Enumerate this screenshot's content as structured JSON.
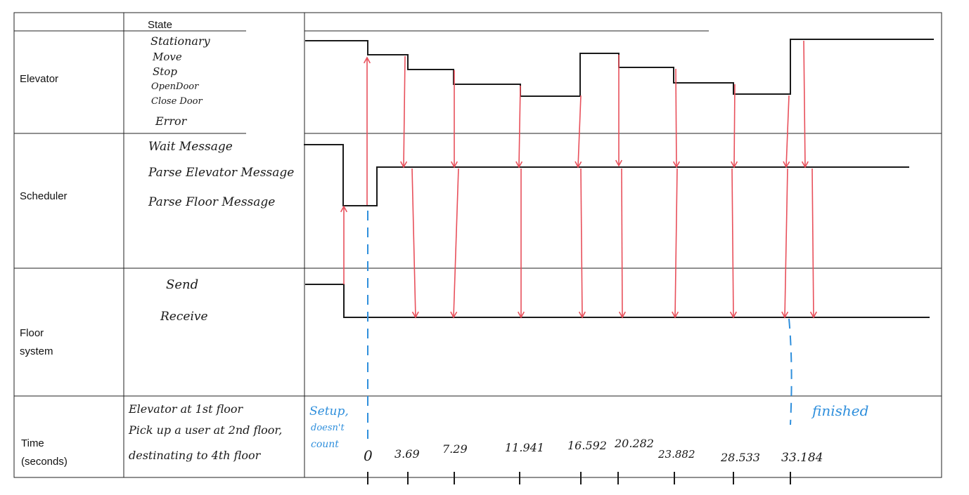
{
  "table": {
    "header_state": "State",
    "rows": [
      {
        "key": "elevator",
        "label": "Elevator"
      },
      {
        "key": "scheduler",
        "label": "Scheduler"
      },
      {
        "key": "floor",
        "label_line1": "Floor",
        "label_line2": "system"
      },
      {
        "key": "time",
        "label_line1": "Time",
        "label_line2": "(seconds)"
      }
    ]
  },
  "states": {
    "elevator": [
      "Stationary",
      "Move",
      "Stop",
      "OpenDoor",
      "Close Door",
      "Error"
    ],
    "scheduler": [
      "Wait Message",
      "Parse Elevator Message",
      "Parse Floor Message"
    ],
    "floor": [
      "Send",
      "Receive"
    ]
  },
  "time_description": [
    "Elevator at 1st floor",
    "Pick up a user at 2nd floor,",
    "destinating to 4th floor"
  ],
  "annotations": {
    "setup": [
      "Setup,",
      "doesn't",
      "count"
    ],
    "finished": "finished"
  },
  "time_ticks": [
    "0",
    "3.69",
    "7.29",
    "11.941",
    "16.592",
    "20.282",
    "23.882",
    "28.533",
    "33.184"
  ],
  "colors": {
    "line": "#1a1a1a",
    "grid": "#222222",
    "arrow": "#e8505b",
    "dashed": "#2f8fdc"
  }
}
